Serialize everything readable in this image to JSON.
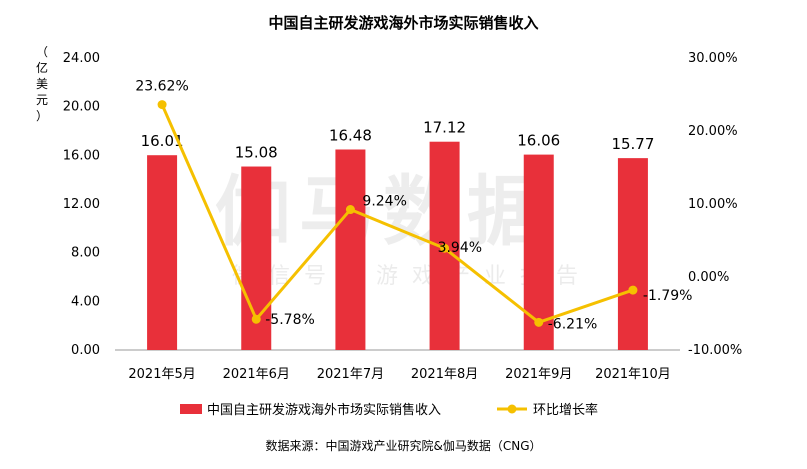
{
  "title": "中国自主研发游戏海外市场实际销售收入",
  "source": "数据来源：中国游戏产业研究院&伽马数据（CNG）",
  "watermark": {
    "main": "伽马数据",
    "sub": "微信号：游戏产业报告"
  },
  "colors": {
    "bar": "#e8303a",
    "line": "#f5c000",
    "axis": "#999999",
    "text": "#000000"
  },
  "chart_data": {
    "type": "bar",
    "title": "中国自主研发游戏海外市场实际销售收入",
    "ylabel": "（亿美元）",
    "categories": [
      "2021年5月",
      "2021年6月",
      "2021年7月",
      "2021年8月",
      "2021年9月",
      "2021年10月"
    ],
    "y_ticks": [
      "0.00",
      "4.00",
      "8.00",
      "12.00",
      "16.00",
      "20.00",
      "24.00"
    ],
    "y2_ticks": [
      "-10.00%",
      "0.00%",
      "10.00%",
      "20.00%",
      "30.00%"
    ],
    "ylim": [
      0,
      24
    ],
    "y2lim": [
      -10,
      30
    ],
    "series": [
      {
        "name": "中国自主研发游戏海外市场实际销售收入",
        "type": "bar",
        "axis": "left",
        "values": [
          16.01,
          15.08,
          16.48,
          17.12,
          16.06,
          15.77
        ],
        "labels": [
          "16.01",
          "15.08",
          "16.48",
          "17.12",
          "16.06",
          "15.77"
        ]
      },
      {
        "name": "环比增长率",
        "type": "line",
        "axis": "right",
        "values": [
          23.62,
          -5.78,
          9.24,
          3.94,
          -6.21,
          -1.79
        ],
        "labels": [
          "23.62%",
          "-5.78%",
          "9.24%",
          "3.94%",
          "-6.21%",
          "-1.79%"
        ]
      }
    ],
    "legend_position": "bottom"
  }
}
